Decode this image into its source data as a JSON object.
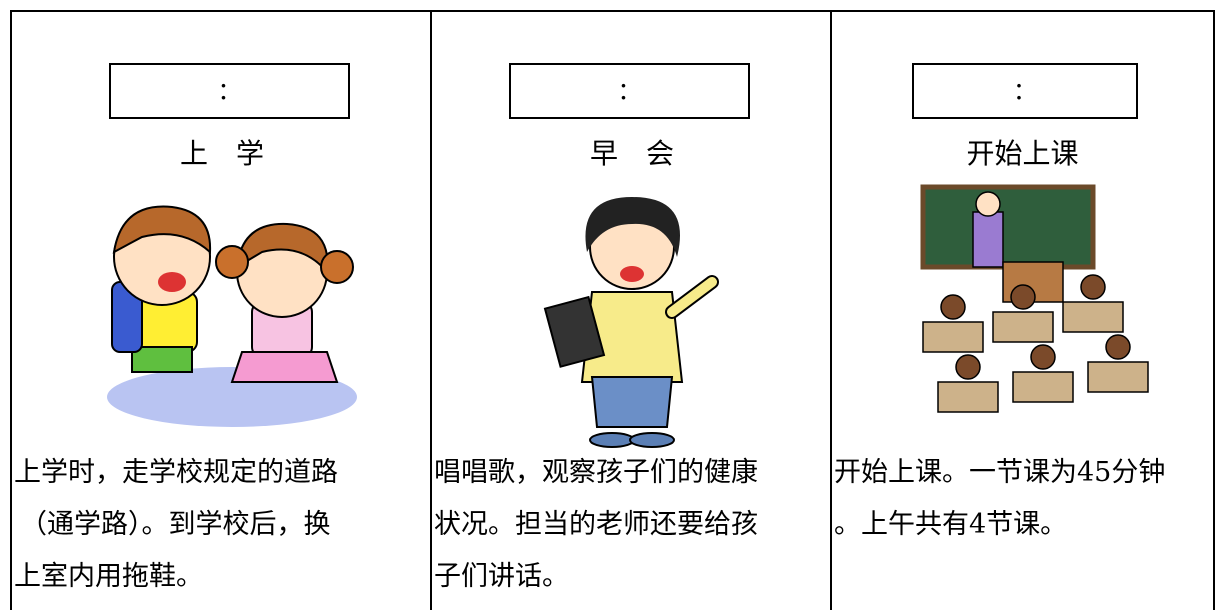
{
  "columns": [
    {
      "time": "：",
      "title": "上　学",
      "lines": [
        "上学时，走学校规定的道路",
        "（通学路）。到学校后，换",
        "上室内用拖鞋。"
      ]
    },
    {
      "time": "：",
      "title": "早　会",
      "lines": [
        "唱唱歌，观察孩子们的健康",
        "状况。担当的老师还要给孩",
        "子们讲话。"
      ]
    },
    {
      "time": "：",
      "title": "开始上课",
      "lines": [
        "开始上课。一节课为45分钟",
        "。上午共有4节课。"
      ]
    }
  ]
}
